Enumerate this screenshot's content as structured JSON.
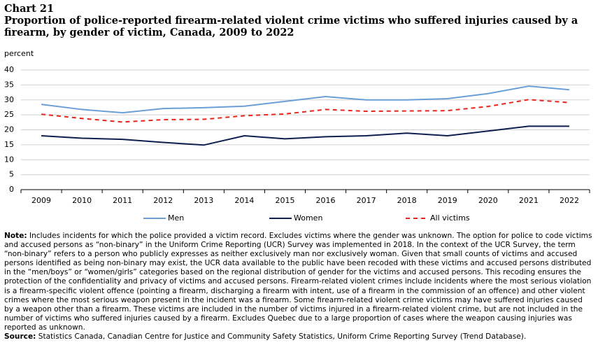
{
  "chart_data": {
    "type": "line",
    "chart_label": "Chart 21",
    "title": "Proportion of police-reported firearm-related violent crime victims who suffered injuries caused by a firearm, by gender of victim, Canada, 2009 to 2022",
    "y_axis_label": "percent",
    "categories": [
      "2009",
      "2010",
      "2011",
      "2012",
      "2013",
      "2014",
      "2015",
      "2016",
      "2017",
      "2018",
      "2019",
      "2020",
      "2021",
      "2022"
    ],
    "series": [
      {
        "name": "Men",
        "color": "#6a9fd8",
        "dashed": false,
        "values": [
          28.5,
          26.8,
          25.7,
          27.1,
          27.4,
          27.9,
          29.5,
          31.1,
          30.0,
          30.0,
          30.4,
          32.1,
          34.6,
          33.4
        ]
      },
      {
        "name": "Women",
        "color": "#0f1f4f",
        "dashed": false,
        "values": [
          18.0,
          17.2,
          16.8,
          15.8,
          14.9,
          18.0,
          17.0,
          17.7,
          18.0,
          18.9,
          18.0,
          19.6,
          21.2,
          21.2
        ]
      },
      {
        "name": "All victims",
        "color": "#e8261c",
        "dashed": true,
        "values": [
          25.2,
          23.8,
          22.6,
          23.4,
          23.5,
          24.7,
          25.3,
          26.8,
          26.2,
          26.3,
          26.4,
          27.8,
          30.1,
          29.1
        ]
      }
    ],
    "ylim": [
      0,
      40
    ],
    "yticks": [
      0,
      5,
      10,
      15,
      20,
      25,
      30,
      35,
      40
    ],
    "grid": true,
    "legend": "bottom",
    "note_label": "Note:",
    "note": "Includes incidents for which the police provided a victim record. Excludes victims where the gender was unknown. The option for police to code victims and accused persons as “non-binary” in the Uniform Crime Reporting (UCR) Survey was implemented in 2018. In the context of the UCR Survey, the term “non-binary” refers to a person who publicly expresses as neither exclusively man nor exclusively woman. Given that small counts of victims and accused persons identified as being non-binary may exist, the UCR data available to the public have been recoded with these victims and accused persons distributed in the “men/boys” or “women/girls” categories based on the regional distribution of gender for the victims and accused persons. This recoding ensures the protection of the confidentiality and privacy of victims and accused persons. Firearm-related violent crimes include incidents where the most serious violation is a firearm-specific violent offence (pointing a firearm, discharging a firearm with intent, use of a firearm in the commission of an offence) and other violent crimes where the most serious weapon present in the incident was a firearm. Some firearm-related violent crime victims may have suffered injuries caused by a weapon other than a firearm. These victims are included in the number of victims injured in a firearm-related violent crime, but are not included in the number of victims who suffered injuries caused by a firearm. Excludes Quebec due to a large proportion of cases where the weapon causing injuries was reported as unknown.",
    "source_label": "Source:",
    "source": "Statistics Canada, Canadian Centre for Justice and Community Safety Statistics, Uniform Crime Reporting Survey (Trend Database)."
  }
}
